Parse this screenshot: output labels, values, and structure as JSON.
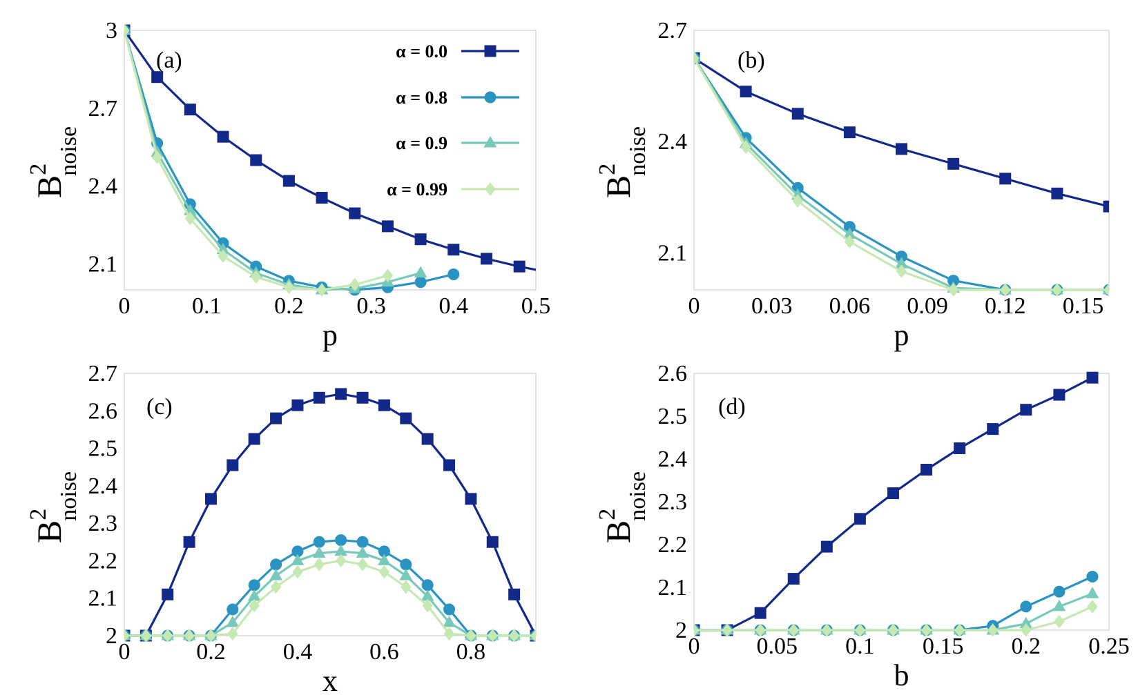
{
  "colors": {
    "alpha_0.0": "#13298a",
    "alpha_0.8": "#2a93c1",
    "alpha_0.9": "#78c9b9",
    "alpha_0.99": "#c6e8b2"
  },
  "legend": {
    "placement": "top-right of panel (a)",
    "entries": [
      {
        "label": "α = 0.0",
        "marker": "square",
        "color": "#13298a"
      },
      {
        "label": "α = 0.8",
        "marker": "circle",
        "color": "#2a93c1"
      },
      {
        "label": "α = 0.9",
        "marker": "triangle",
        "color": "#78c9b9"
      },
      {
        "label": "α = 0.99",
        "marker": "diamond",
        "color": "#c6e8b2"
      }
    ]
  },
  "chart_data": [
    {
      "type": "line",
      "panel_label": "(a)",
      "xlabel": "p",
      "ylabel": "B",
      "ylabel_sup": "2",
      "ylabel_sub": "noise",
      "xlim": [
        0,
        0.5
      ],
      "ylim": [
        2.0,
        3.0
      ],
      "xticks": [
        0,
        0.1,
        0.2,
        0.3,
        0.4,
        0.5
      ],
      "xtick_labels": [
        "0",
        "0.1",
        "0.2",
        "0.3",
        "0.4",
        "0.5"
      ],
      "yticks": [
        2.1,
        2.4,
        2.7,
        3.0
      ],
      "ytick_labels": [
        "2.1",
        "2.4",
        "2.7",
        "3"
      ],
      "grid": false,
      "series": [
        {
          "name": "α = 0.0",
          "marker": "square",
          "x": [
            0,
            0.04,
            0.08,
            0.12,
            0.16,
            0.2,
            0.24,
            0.28,
            0.32,
            0.36,
            0.4,
            0.44,
            0.48,
            0.52
          ],
          "y": [
            3.0,
            2.82,
            2.695,
            2.59,
            2.5,
            2.42,
            2.355,
            2.295,
            2.245,
            2.195,
            2.155,
            2.12,
            2.09,
            2.065
          ]
        },
        {
          "name": "α = 0.8",
          "marker": "circle",
          "x": [
            0,
            0.04,
            0.08,
            0.12,
            0.16,
            0.2,
            0.24,
            0.28,
            0.32,
            0.36,
            0.4
          ],
          "y": [
            3.0,
            2.565,
            2.33,
            2.18,
            2.09,
            2.035,
            2.01,
            2.0,
            2.01,
            2.03,
            2.06
          ]
        },
        {
          "name": "α = 0.9",
          "marker": "triangle",
          "x": [
            0,
            0.04,
            0.08,
            0.12,
            0.16,
            0.2,
            0.24,
            0.28,
            0.32,
            0.36
          ],
          "y": [
            3.0,
            2.53,
            2.305,
            2.155,
            2.065,
            2.02,
            2.0,
            2.005,
            2.03,
            2.065
          ]
        },
        {
          "name": "α = 0.99",
          "marker": "diamond",
          "x": [
            0,
            0.04,
            0.08,
            0.12,
            0.16,
            0.2,
            0.24,
            0.28,
            0.32
          ],
          "y": [
            3.0,
            2.51,
            2.275,
            2.13,
            2.05,
            2.01,
            2.0,
            2.02,
            2.055
          ]
        }
      ]
    },
    {
      "type": "line",
      "panel_label": "(b)",
      "xlabel": "p",
      "ylabel": "B",
      "ylabel_sup": "2",
      "ylabel_sub": "noise",
      "xlim": [
        0,
        0.16
      ],
      "ylim": [
        2.0,
        2.7
      ],
      "xticks": [
        0,
        0.03,
        0.06,
        0.09,
        0.12,
        0.15
      ],
      "xtick_labels": [
        "0",
        "0.03",
        "0.06",
        "0.09",
        "0.12",
        "0.15"
      ],
      "yticks": [
        2.1,
        2.4,
        2.7
      ],
      "ytick_labels": [
        "2.1",
        "2.4",
        "2.7"
      ],
      "grid": false,
      "series": [
        {
          "name": "α = 0.0",
          "marker": "square",
          "x": [
            0,
            0.02,
            0.04,
            0.06,
            0.08,
            0.1,
            0.12,
            0.14,
            0.16
          ],
          "y": [
            2.625,
            2.535,
            2.475,
            2.425,
            2.38,
            2.34,
            2.3,
            2.26,
            2.225
          ]
        },
        {
          "name": "α = 0.8",
          "marker": "circle",
          "x": [
            0,
            0.02,
            0.04,
            0.06,
            0.08,
            0.1,
            0.12,
            0.14,
            0.16
          ],
          "y": [
            2.625,
            2.41,
            2.275,
            2.17,
            2.09,
            2.025,
            2.0,
            2.0,
            2.0
          ]
        },
        {
          "name": "α = 0.9",
          "marker": "triangle",
          "x": [
            0,
            0.02,
            0.04,
            0.06,
            0.08,
            0.1,
            0.12,
            0.14,
            0.16
          ],
          "y": [
            2.625,
            2.395,
            2.255,
            2.15,
            2.07,
            2.005,
            2.0,
            2.0,
            2.0
          ]
        },
        {
          "name": "α = 0.99",
          "marker": "diamond",
          "x": [
            0,
            0.02,
            0.04,
            0.06,
            0.08,
            0.1,
            0.12,
            0.14,
            0.16
          ],
          "y": [
            2.625,
            2.385,
            2.24,
            2.13,
            2.05,
            2.0,
            2.0,
            2.0,
            2.0
          ]
        }
      ]
    },
    {
      "type": "line",
      "panel_label": "(c)",
      "xlabel": "x",
      "ylabel": "B",
      "ylabel_sup": "2",
      "ylabel_sub": "noise",
      "xlim": [
        0,
        0.95
      ],
      "ylim": [
        2.0,
        2.7
      ],
      "xticks": [
        0,
        0.2,
        0.4,
        0.6,
        0.8
      ],
      "xtick_labels": [
        "0",
        "0.2",
        "0.4",
        "0.6",
        "0.8"
      ],
      "yticks": [
        2.0,
        2.1,
        2.2,
        2.3,
        2.4,
        2.5,
        2.6,
        2.7
      ],
      "ytick_labels": [
        "2",
        "2.1",
        "2.2",
        "2.3",
        "2.4",
        "2.5",
        "2.6",
        "2.7"
      ],
      "grid": false,
      "series": [
        {
          "name": "α = 0.0",
          "marker": "square",
          "x": [
            0,
            0.05,
            0.1,
            0.15,
            0.2,
            0.25,
            0.3,
            0.35,
            0.4,
            0.45,
            0.5,
            0.55,
            0.6,
            0.65,
            0.7,
            0.75,
            0.8,
            0.85,
            0.9,
            0.95
          ],
          "y": [
            2.0,
            2.0,
            2.11,
            2.25,
            2.365,
            2.455,
            2.525,
            2.58,
            2.615,
            2.635,
            2.645,
            2.635,
            2.615,
            2.58,
            2.525,
            2.455,
            2.365,
            2.25,
            2.11,
            2.0
          ]
        },
        {
          "name": "α = 0.8",
          "marker": "circle",
          "x": [
            0,
            0.05,
            0.1,
            0.15,
            0.2,
            0.25,
            0.3,
            0.35,
            0.4,
            0.45,
            0.5,
            0.55,
            0.6,
            0.65,
            0.7,
            0.75,
            0.8,
            0.85,
            0.9,
            0.95
          ],
          "y": [
            2.0,
            2.0,
            2.0,
            2.0,
            2.0,
            2.07,
            2.135,
            2.19,
            2.225,
            2.25,
            2.255,
            2.25,
            2.225,
            2.19,
            2.135,
            2.07,
            2.0,
            2.0,
            2.0,
            2.0
          ]
        },
        {
          "name": "α = 0.9",
          "marker": "triangle",
          "x": [
            0,
            0.05,
            0.1,
            0.15,
            0.2,
            0.25,
            0.3,
            0.35,
            0.4,
            0.45,
            0.5,
            0.55,
            0.6,
            0.65,
            0.7,
            0.75,
            0.8,
            0.85,
            0.9,
            0.95
          ],
          "y": [
            2.0,
            2.0,
            2.0,
            2.0,
            2.0,
            2.035,
            2.105,
            2.16,
            2.2,
            2.22,
            2.225,
            2.22,
            2.2,
            2.16,
            2.105,
            2.035,
            2.0,
            2.0,
            2.0,
            2.0
          ]
        },
        {
          "name": "α = 0.99",
          "marker": "diamond",
          "x": [
            0,
            0.05,
            0.1,
            0.15,
            0.2,
            0.25,
            0.3,
            0.35,
            0.4,
            0.45,
            0.5,
            0.55,
            0.6,
            0.65,
            0.7,
            0.75,
            0.8,
            0.85,
            0.9,
            0.95
          ],
          "y": [
            2.0,
            2.0,
            2.0,
            2.0,
            2.0,
            2.005,
            2.08,
            2.13,
            2.17,
            2.19,
            2.2,
            2.19,
            2.17,
            2.13,
            2.08,
            2.005,
            2.0,
            2.0,
            2.0,
            2.0
          ]
        }
      ]
    },
    {
      "type": "line",
      "panel_label": "(d)",
      "xlabel": "b",
      "ylabel": "B",
      "ylabel_sup": "2",
      "ylabel_sub": "noise",
      "xlim": [
        0,
        0.25
      ],
      "ylim": [
        2.0,
        2.6
      ],
      "xticks": [
        0,
        0.05,
        0.1,
        0.15,
        0.2,
        0.25
      ],
      "xtick_labels": [
        "0",
        "0.05",
        "0.1",
        "0.15",
        "0.2",
        "0.25"
      ],
      "yticks": [
        2.0,
        2.1,
        2.2,
        2.3,
        2.4,
        2.5,
        2.6
      ],
      "ytick_labels": [
        "2",
        "2.1",
        "2.2",
        "2.3",
        "2.4",
        "2.5",
        "2.6"
      ],
      "grid": false,
      "series": [
        {
          "name": "α = 0.0",
          "marker": "square",
          "x": [
            0,
            0.02,
            0.04,
            0.06,
            0.08,
            0.1,
            0.12,
            0.14,
            0.16,
            0.18,
            0.2,
            0.22,
            0.24
          ],
          "y": [
            2.0,
            2.0,
            2.04,
            2.12,
            2.195,
            2.26,
            2.32,
            2.375,
            2.425,
            2.47,
            2.515,
            2.55,
            2.59
          ]
        },
        {
          "name": "α = 0.8",
          "marker": "circle",
          "x": [
            0,
            0.02,
            0.04,
            0.06,
            0.08,
            0.1,
            0.12,
            0.14,
            0.16,
            0.18,
            0.2,
            0.22,
            0.24
          ],
          "y": [
            2.0,
            2.0,
            2.0,
            2.0,
            2.0,
            2.0,
            2.0,
            2.0,
            2.0,
            2.01,
            2.055,
            2.09,
            2.125
          ]
        },
        {
          "name": "α = 0.9",
          "marker": "triangle",
          "x": [
            0,
            0.02,
            0.04,
            0.06,
            0.08,
            0.1,
            0.12,
            0.14,
            0.16,
            0.18,
            0.2,
            0.22,
            0.24
          ],
          "y": [
            2.0,
            2.0,
            2.0,
            2.0,
            2.0,
            2.0,
            2.0,
            2.0,
            2.0,
            2.0,
            2.015,
            2.055,
            2.085
          ]
        },
        {
          "name": "α = 0.99",
          "marker": "diamond",
          "x": [
            0,
            0.02,
            0.04,
            0.06,
            0.08,
            0.1,
            0.12,
            0.14,
            0.16,
            0.18,
            0.2,
            0.22,
            0.24
          ],
          "y": [
            2.0,
            2.0,
            2.0,
            2.0,
            2.0,
            2.0,
            2.0,
            2.0,
            2.0,
            2.0,
            2.0,
            2.02,
            2.055
          ]
        }
      ]
    }
  ]
}
